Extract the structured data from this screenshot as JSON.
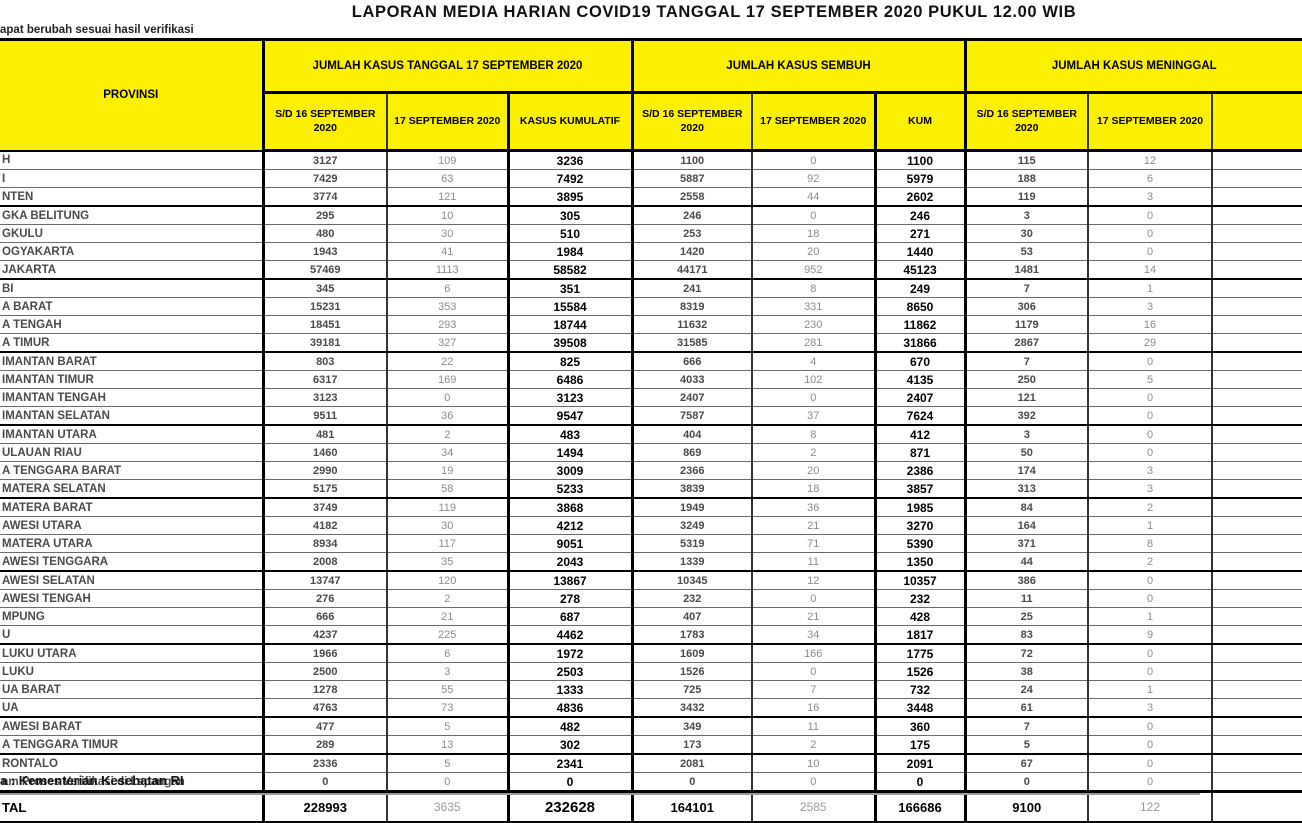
{
  "title": "LAPORAN MEDIA HARIAN COVID19 TANGGAL 17 SEPTEMBER 2020 PUKUL 12.00 WIB",
  "note": "apat berubah sesuai hasil verifikasi",
  "footer": "a : Kementerian Kesehatan RI",
  "colors": {
    "header_yellow": "#fbf000",
    "grid_black": "#000000",
    "light_value_gray": "#8c8c8c"
  },
  "table": {
    "province_header": "PROVINSI",
    "groups": [
      {
        "label": "JUMLAH KASUS TANGGAL 17 SEPTEMBER 2020",
        "cols": [
          "S/D 16 SEPTEMBER 2020",
          "17 SEPTEMBER 2020",
          "KASUS KUMULATIF"
        ]
      },
      {
        "label": "JUMLAH KASUS SEMBUH",
        "cols": [
          "S/D 16 SEPTEMBER 2020",
          "17 SEPTEMBER 2020",
          "KUM"
        ]
      },
      {
        "label": "JUMLAH KASUS MENINGGAL",
        "cols": [
          "S/D 16 SEPTEMBER 2020",
          "17 SEPTEMBER 2020",
          ""
        ]
      }
    ],
    "rows": [
      {
        "province": "H",
        "values": [
          3127,
          109,
          3236,
          1100,
          0,
          1100,
          115,
          12
        ]
      },
      {
        "province": "I",
        "values": [
          7429,
          63,
          7492,
          5887,
          92,
          5979,
          188,
          6
        ]
      },
      {
        "province": "NTEN",
        "values": [
          3774,
          121,
          3895,
          2558,
          44,
          2602,
          119,
          3
        ]
      },
      {
        "province": "GKA BELITUNG",
        "values": [
          295,
          10,
          305,
          246,
          0,
          246,
          3,
          0
        ]
      },
      {
        "province": "GKULU",
        "values": [
          480,
          30,
          510,
          253,
          18,
          271,
          30,
          0
        ]
      },
      {
        "province": "OGYAKARTA",
        "values": [
          1943,
          41,
          1984,
          1420,
          20,
          1440,
          53,
          0
        ]
      },
      {
        "province": "JAKARTA",
        "values": [
          57469,
          1113,
          58582,
          44171,
          952,
          45123,
          1481,
          14
        ]
      },
      {
        "province": "BI",
        "values": [
          345,
          6,
          351,
          241,
          8,
          249,
          7,
          1
        ]
      },
      {
        "province": "A BARAT",
        "values": [
          15231,
          353,
          15584,
          8319,
          331,
          8650,
          306,
          3
        ]
      },
      {
        "province": "A TENGAH",
        "values": [
          18451,
          293,
          18744,
          11632,
          230,
          11862,
          1179,
          16
        ]
      },
      {
        "province": "A TIMUR",
        "values": [
          39181,
          327,
          39508,
          31585,
          281,
          31866,
          2867,
          29
        ]
      },
      {
        "province": "IMANTAN BARAT",
        "values": [
          803,
          22,
          825,
          666,
          4,
          670,
          7,
          0
        ]
      },
      {
        "province": "IMANTAN TIMUR",
        "values": [
          6317,
          169,
          6486,
          4033,
          102,
          4135,
          250,
          5
        ]
      },
      {
        "province": "IMANTAN TENGAH",
        "values": [
          3123,
          0,
          3123,
          2407,
          0,
          2407,
          121,
          0
        ]
      },
      {
        "province": "IMANTAN SELATAN",
        "values": [
          9511,
          36,
          9547,
          7587,
          37,
          7624,
          392,
          0
        ]
      },
      {
        "province": "IMANTAN UTARA",
        "values": [
          481,
          2,
          483,
          404,
          8,
          412,
          3,
          0
        ]
      },
      {
        "province": "ULAUAN RIAU",
        "values": [
          1460,
          34,
          1494,
          869,
          2,
          871,
          50,
          0
        ]
      },
      {
        "province": "A TENGGARA BARAT",
        "values": [
          2990,
          19,
          3009,
          2366,
          20,
          2386,
          174,
          3
        ]
      },
      {
        "province": "MATERA SELATAN",
        "values": [
          5175,
          58,
          5233,
          3839,
          18,
          3857,
          313,
          3
        ]
      },
      {
        "province": "MATERA BARAT",
        "values": [
          3749,
          119,
          3868,
          1949,
          36,
          1985,
          84,
          2
        ]
      },
      {
        "province": "AWESI UTARA",
        "values": [
          4182,
          30,
          4212,
          3249,
          21,
          3270,
          164,
          1
        ]
      },
      {
        "province": "MATERA UTARA",
        "values": [
          8934,
          117,
          9051,
          5319,
          71,
          5390,
          371,
          8
        ]
      },
      {
        "province": "AWESI TENGGARA",
        "values": [
          2008,
          35,
          2043,
          1339,
          11,
          1350,
          44,
          2
        ]
      },
      {
        "province": "AWESI SELATAN",
        "values": [
          13747,
          120,
          13867,
          10345,
          12,
          10357,
          386,
          0
        ]
      },
      {
        "province": "AWESI TENGAH",
        "values": [
          276,
          2,
          278,
          232,
          0,
          232,
          11,
          0
        ]
      },
      {
        "province": "MPUNG",
        "values": [
          666,
          21,
          687,
          407,
          21,
          428,
          25,
          1
        ]
      },
      {
        "province": "U",
        "values": [
          4237,
          225,
          4462,
          1783,
          34,
          1817,
          83,
          9
        ]
      },
      {
        "province": "LUKU UTARA",
        "values": [
          1966,
          6,
          1972,
          1609,
          166,
          1775,
          72,
          0
        ]
      },
      {
        "province": "LUKU",
        "values": [
          2500,
          3,
          2503,
          1526,
          0,
          1526,
          38,
          0
        ]
      },
      {
        "province": "UA BARAT",
        "values": [
          1278,
          55,
          1333,
          725,
          7,
          732,
          24,
          1
        ]
      },
      {
        "province": "UA",
        "values": [
          4763,
          73,
          4836,
          3432,
          16,
          3448,
          61,
          3
        ]
      },
      {
        "province": "AWESI BARAT",
        "values": [
          477,
          5,
          482,
          349,
          11,
          360,
          7,
          0
        ]
      },
      {
        "province": "A TENGGARA TIMUR",
        "values": [
          289,
          13,
          302,
          173,
          2,
          175,
          5,
          0
        ]
      },
      {
        "province": "RONTALO",
        "values": [
          2336,
          5,
          2341,
          2081,
          10,
          2091,
          67,
          0
        ]
      },
      {
        "province": "am Proses Verifikasi di Lapangan",
        "values": [
          0,
          0,
          0,
          0,
          0,
          0,
          0,
          0
        ]
      }
    ],
    "total": {
      "label": "TAL",
      "values": [
        228993,
        3635,
        232628,
        164101,
        2585,
        166686,
        9100,
        122
      ]
    }
  }
}
